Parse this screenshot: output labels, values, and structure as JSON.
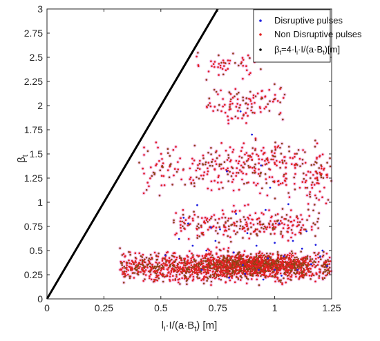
{
  "chart_data": {
    "type": "scatter",
    "xlabel": "l_i·I/(a·B_t) [m]",
    "ylabel": "β_t",
    "xlim": [
      0,
      1.25
    ],
    "ylim": [
      0,
      3
    ],
    "x_ticks": [
      "0",
      "0.25",
      "0.5",
      "0.75",
      "1",
      "1.25"
    ],
    "y_ticks": [
      "0",
      "0.25",
      "0.5",
      "0.75",
      "1",
      "1.25",
      "1.5",
      "1.75",
      "2",
      "2.25",
      "2.5",
      "2.75",
      "3"
    ],
    "legend_position": "top-right",
    "grid": false,
    "series": [
      {
        "name": "Disruptive pulses",
        "color": "#1f1fe0",
        "marker": "dot",
        "points": [
          [
            0.52,
            0.45
          ],
          [
            0.58,
            0.62
          ],
          [
            0.6,
            0.84
          ],
          [
            0.62,
            0.78
          ],
          [
            0.64,
            0.55
          ],
          [
            0.66,
            0.97
          ],
          [
            0.7,
            0.5
          ],
          [
            0.72,
            0.74
          ],
          [
            0.74,
            0.6
          ],
          [
            0.76,
            0.72
          ],
          [
            0.79,
            1.32
          ],
          [
            0.8,
            0.22
          ],
          [
            0.82,
            0.48
          ],
          [
            0.83,
            0.88
          ],
          [
            0.85,
            1.94
          ],
          [
            0.86,
            0.35
          ],
          [
            0.88,
            0.68
          ],
          [
            0.9,
            1.7
          ],
          [
            0.92,
            0.55
          ],
          [
            0.94,
            1.38
          ],
          [
            0.95,
            0.2
          ],
          [
            0.96,
            0.92
          ],
          [
            0.97,
            0.42
          ],
          [
            0.98,
            1.15
          ],
          [
            1.0,
            0.3
          ],
          [
            1.0,
            0.58
          ],
          [
            1.02,
            0.78
          ],
          [
            1.04,
            0.44
          ],
          [
            1.06,
            0.98
          ],
          [
            1.08,
            0.6
          ],
          [
            1.1,
            0.3
          ],
          [
            1.12,
            0.52
          ],
          [
            1.14,
            0.7
          ],
          [
            1.16,
            0.36
          ],
          [
            1.18,
            0.56
          ],
          [
            1.2,
            0.44
          ],
          [
            1.21,
            0.5
          ],
          [
            1.23,
            0.34
          ],
          [
            0.68,
            0.3
          ],
          [
            0.87,
            0.26
          ],
          [
            0.93,
            0.3
          ],
          [
            1.03,
            0.24
          ]
        ]
      },
      {
        "name": "Non Disruptive pulses",
        "color": "#e02020",
        "marker": "dot",
        "clusters": [
          {
            "x": [
              0.32,
              1.25
            ],
            "y": [
              0.12,
              0.55
            ],
            "n": 1500
          },
          {
            "x": [
              0.7,
              1.15
            ],
            "y": [
              0.2,
              0.5
            ],
            "n": 700
          },
          {
            "x": [
              0.55,
              1.2
            ],
            "y": [
              0.55,
              1.0
            ],
            "n": 260
          },
          {
            "x": [
              0.62,
              1.2
            ],
            "y": [
              1.0,
              1.75
            ],
            "n": 280
          },
          {
            "x": [
              0.7,
              1.05
            ],
            "y": [
              1.75,
              2.3
            ],
            "n": 110
          },
          {
            "x": [
              0.65,
              0.95
            ],
            "y": [
              2.25,
              2.6
            ],
            "n": 45
          },
          {
            "x": [
              0.4,
              0.62
            ],
            "y": [
              0.95,
              1.75
            ],
            "n": 55
          },
          {
            "x": [
              1.12,
              1.25
            ],
            "y": [
              0.8,
              1.7
            ],
            "n": 55
          }
        ]
      },
      {
        "name": "β_t=4·l_i·I/(a·B_t)[m]",
        "color": "#000000",
        "style": "line",
        "x": [
          0,
          0.75
        ],
        "y": [
          0,
          3
        ]
      }
    ]
  },
  "colors": {
    "disruptive": "#1f1fe0",
    "non_disruptive": "#e02020",
    "non_disruptive_edge": "#8b4513",
    "halo": "#f6c9ee",
    "line": "#000000"
  },
  "legend": {
    "entries": [
      "Disruptive pulses",
      "Non Disruptive pulses",
      "β_t=4·l_i·I/(a·B_t)[m]"
    ]
  }
}
